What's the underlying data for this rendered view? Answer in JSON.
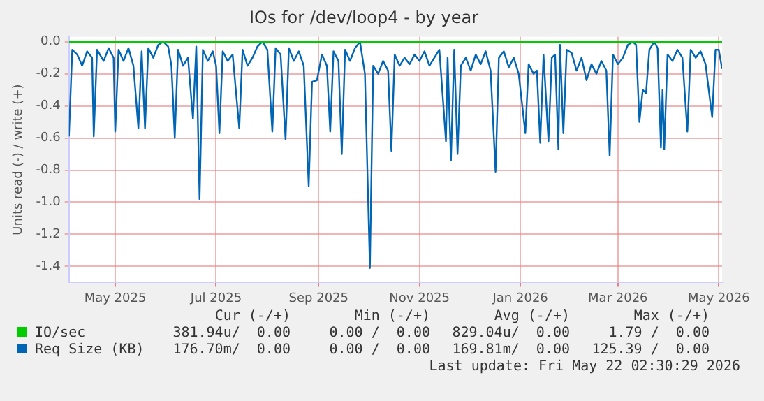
{
  "chart_data": {
    "type": "line",
    "title": "IOs for /dev/loop4 - by year",
    "ylabel": "Units read (-) / write (+)",
    "xlim": [
      "2025-04-03",
      "2026-05-03"
    ],
    "xticks": [
      {
        "value": "2025-05-01",
        "label": "May 2025"
      },
      {
        "value": "2025-07-01",
        "label": "Jul 2025"
      },
      {
        "value": "2025-09-01",
        "label": "Sep 2025"
      },
      {
        "value": "2025-11-01",
        "label": "Nov 2025"
      },
      {
        "value": "2026-01-01",
        "label": "Jan 2026"
      },
      {
        "value": "2026-03-01",
        "label": "Mar 2026"
      },
      {
        "value": "2026-05-01",
        "label": "May 2026"
      }
    ],
    "ylim": [
      -1.5,
      0.03
    ],
    "yticks": [
      {
        "value": 0,
        "label": "0.0"
      },
      {
        "value": -0.2,
        "label": "-0.2"
      },
      {
        "value": -0.4,
        "label": "-0.4"
      },
      {
        "value": -0.6,
        "label": "-0.6"
      },
      {
        "value": -0.8,
        "label": "-0.8"
      },
      {
        "value": -1,
        "label": "-1.0"
      },
      {
        "value": -1.2,
        "label": "-1.2"
      },
      {
        "value": -1.4,
        "label": "-1.4"
      }
    ],
    "grid": true,
    "legend": "bottom left",
    "line_style": "solid",
    "marker": "none",
    "series": [
      {
        "name": "IO/sec",
        "color": "#00cc00",
        "x": [
          "2025-04-03",
          "2026-05-03"
        ],
        "values": [
          0,
          0
        ]
      },
      {
        "name": "Req Size (KB)",
        "color": "#0066b3",
        "x": [
          "2025-04-03",
          "2025-04-05",
          "2025-04-08",
          "2025-04-11",
          "2025-04-14",
          "2025-04-17",
          "2025-04-18",
          "2025-04-20",
          "2025-04-24",
          "2025-04-27",
          "2025-04-30",
          "2025-05-01",
          "2025-05-03",
          "2025-05-06",
          "2025-05-09",
          "2025-05-12",
          "2025-05-15",
          "2025-05-17",
          "2025-05-19",
          "2025-05-21",
          "2025-05-24",
          "2025-05-27",
          "2025-05-30",
          "2025-06-02",
          "2025-06-04",
          "2025-06-06",
          "2025-06-08",
          "2025-06-11",
          "2025-06-14",
          "2025-06-17",
          "2025-06-19",
          "2025-06-21",
          "2025-06-23",
          "2025-06-26",
          "2025-06-29",
          "2025-07-01",
          "2025-07-03",
          "2025-07-05",
          "2025-07-08",
          "2025-07-11",
          "2025-07-15",
          "2025-07-17",
          "2025-07-20",
          "2025-07-23",
          "2025-07-26",
          "2025-07-29",
          "2025-08-01",
          "2025-08-04",
          "2025-08-06",
          "2025-08-09",
          "2025-08-12",
          "2025-08-14",
          "2025-08-17",
          "2025-08-20",
          "2025-08-23",
          "2025-08-26",
          "2025-08-28",
          "2025-08-31",
          "2025-09-03",
          "2025-09-06",
          "2025-09-08",
          "2025-09-10",
          "2025-09-13",
          "2025-09-15",
          "2025-09-17",
          "2025-09-20",
          "2025-09-23",
          "2025-09-26",
          "2025-09-29",
          "2025-10-02",
          "2025-10-04",
          "2025-10-07",
          "2025-10-10",
          "2025-10-13",
          "2025-10-15",
          "2025-10-17",
          "2025-10-20",
          "2025-10-23",
          "2025-10-26",
          "2025-10-29",
          "2025-11-01",
          "2025-11-04",
          "2025-11-07",
          "2025-11-10",
          "2025-11-13",
          "2025-11-17",
          "2025-11-18",
          "2025-11-20",
          "2025-11-22",
          "2025-11-24",
          "2025-11-26",
          "2025-11-29",
          "2025-12-02",
          "2025-12-05",
          "2025-12-08",
          "2025-12-11",
          "2025-12-14",
          "2025-12-17",
          "2025-12-19",
          "2025-12-22",
          "2025-12-25",
          "2025-12-28",
          "2025-12-31",
          "2026-01-04",
          "2026-01-06",
          "2026-01-09",
          "2026-01-11",
          "2026-01-13",
          "2026-01-15",
          "2026-01-18",
          "2026-01-20",
          "2026-01-22",
          "2026-01-24",
          "2026-01-25",
          "2026-01-27",
          "2026-01-29",
          "2026-02-01",
          "2026-02-04",
          "2026-02-07",
          "2026-02-10",
          "2026-02-13",
          "2026-02-16",
          "2026-02-19",
          "2026-02-22",
          "2026-02-24",
          "2026-02-26",
          "2026-03-01",
          "2026-03-04",
          "2026-03-07",
          "2026-03-10",
          "2026-03-12",
          "2026-03-14",
          "2026-03-16",
          "2026-03-18",
          "2026-03-20",
          "2026-03-23",
          "2026-03-25",
          "2026-03-27",
          "2026-03-28",
          "2026-03-29",
          "2026-03-31",
          "2026-04-03",
          "2026-04-06",
          "2026-04-09",
          "2026-04-12",
          "2026-04-14",
          "2026-04-17",
          "2026-04-20",
          "2026-04-23",
          "2026-04-27",
          "2026-04-29",
          "2026-05-01",
          "2026-05-03"
        ],
        "values": [
          -0.59,
          -0.05,
          -0.08,
          -0.15,
          -0.06,
          -0.1,
          -0.59,
          -0.05,
          -0.12,
          -0.04,
          -0.1,
          -0.56,
          -0.05,
          -0.12,
          -0.04,
          -0.15,
          -0.54,
          -0.06,
          -0.54,
          -0.04,
          -0.1,
          -0.02,
          0,
          -0.03,
          -0.15,
          -0.6,
          -0.05,
          -0.15,
          -0.1,
          -0.48,
          -0.03,
          -0.98,
          -0.05,
          -0.12,
          -0.06,
          -0.15,
          -0.57,
          -0.06,
          -0.12,
          -0.08,
          -0.54,
          -0.05,
          -0.15,
          -0.1,
          -0.03,
          0,
          -0.05,
          -0.56,
          -0.04,
          -0.08,
          -0.61,
          -0.04,
          -0.12,
          -0.06,
          -0.15,
          -0.9,
          -0.25,
          -0.24,
          -0.08,
          -0.15,
          -0.56,
          -0.06,
          -0.12,
          -0.7,
          -0.05,
          -0.12,
          -0.04,
          0,
          -0.2,
          -1.41,
          -0.15,
          -0.2,
          -0.12,
          -0.18,
          -0.68,
          -0.08,
          -0.15,
          -0.1,
          -0.14,
          -0.08,
          -0.12,
          -0.06,
          -0.15,
          -0.1,
          -0.05,
          -0.62,
          -0.1,
          -0.74,
          -0.05,
          -0.7,
          -0.15,
          -0.1,
          -0.18,
          -0.08,
          -0.14,
          -0.06,
          -0.18,
          -0.81,
          -0.1,
          -0.06,
          -0.16,
          -0.1,
          -0.2,
          -0.57,
          -0.14,
          -0.2,
          -0.18,
          -0.63,
          -0.08,
          -0.62,
          -0.1,
          -0.08,
          -0.67,
          -0.02,
          -0.57,
          -0.05,
          -0.07,
          -0.18,
          -0.1,
          -0.24,
          -0.14,
          -0.2,
          -0.12,
          -0.18,
          -0.71,
          -0.08,
          -0.14,
          -0.1,
          -0.02,
          0,
          -0.02,
          -0.5,
          -0.3,
          -0.32,
          -0.05,
          0,
          -0.04,
          -0.66,
          -0.3,
          -0.67,
          -0.08,
          -0.12,
          -0.05,
          -0.1,
          -0.56,
          -0.05,
          -0.1,
          -0.06,
          -0.14,
          -0.47,
          -0.05,
          -0.05,
          -0.17
        ]
      }
    ],
    "annotations": [
      "Cur (-/+)",
      "Min (-/+)",
      "Avg (-/+)",
      "Max (-/+)",
      "381.94u/  0.00",
      "0.00 /  0.00",
      "829.04u/  0.00",
      "1.79 /  0.00",
      "176.70m/  0.00",
      "0.00 /  0.00",
      "169.81m/  0.00",
      "125.39 /  0.00",
      "Last update: Fri May 22 02:30:29 2026"
    ]
  }
}
